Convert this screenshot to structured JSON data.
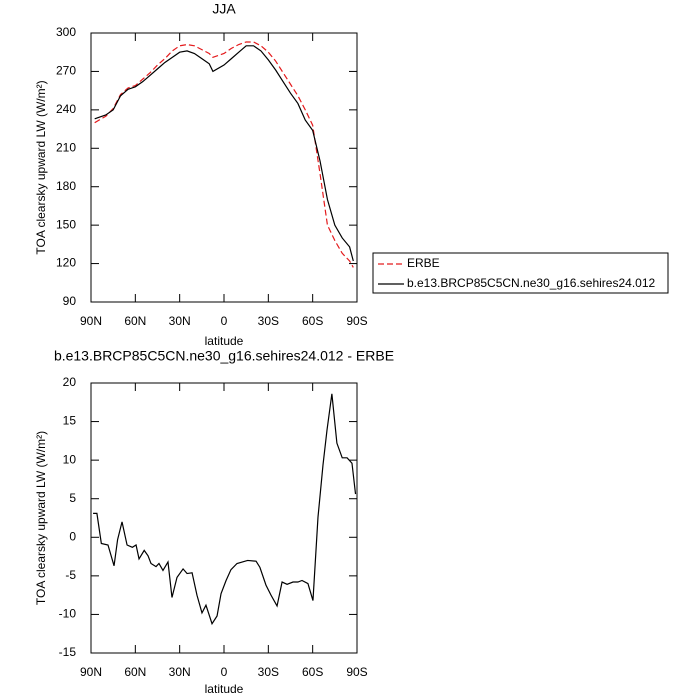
{
  "chart_data": [
    {
      "type": "line",
      "title": "JJA",
      "xlabel": "latitude",
      "ylabel": "TOA clearsky upward LW (W/m²)",
      "xlim": [
        90,
        -90
      ],
      "ylim": [
        90,
        300
      ],
      "xticks": [
        {
          "value": 90,
          "label": "90N"
        },
        {
          "value": 60,
          "label": "60N"
        },
        {
          "value": 30,
          "label": "30N"
        },
        0,
        {
          "value": -30,
          "label": "30S"
        },
        {
          "value": -60,
          "label": "60S"
        },
        {
          "value": -90,
          "label": "90S"
        }
      ],
      "yticks": [
        90,
        120,
        150,
        180,
        210,
        240,
        270,
        300
      ],
      "legend": "outside right",
      "x": [
        87.5,
        80,
        75,
        70,
        65,
        60,
        55,
        50,
        45,
        40,
        35,
        30,
        25,
        20,
        15,
        10,
        7.5,
        0,
        -5,
        -10,
        -15,
        -20,
        -25,
        -30,
        -35,
        -40,
        -45,
        -50,
        -55,
        -60,
        -65,
        -70,
        -75,
        -80,
        -85,
        -87.5
      ],
      "series": [
        {
          "name": "ERBE",
          "color": "#e41a1c",
          "linestyle": "dashed",
          "values": [
            230,
            235,
            241,
            252,
            257,
            259,
            264,
            269,
            275,
            280,
            286,
            290,
            291,
            290,
            287,
            284,
            281,
            284,
            288,
            291,
            293,
            293,
            290,
            285,
            278,
            269,
            260,
            251,
            240,
            228,
            190,
            150,
            138,
            128,
            122,
            117
          ]
        },
        {
          "name": "b.e13.BRCP85C5CN.ne30_g16.sehires24.012",
          "color": "#000000",
          "linestyle": "solid",
          "values": [
            233,
            236,
            240,
            251,
            256,
            258,
            262,
            267,
            272,
            277,
            281,
            285,
            286,
            284,
            280,
            276,
            270,
            275,
            280,
            285,
            290,
            290,
            286,
            279,
            271,
            262,
            253,
            245,
            232,
            224,
            200,
            170,
            150,
            140,
            133,
            122
          ]
        }
      ]
    },
    {
      "type": "line",
      "title": "b.e13.BRCP85C5CN.ne30_g16.sehires24.012 - ERBE",
      "xlabel": "latitude",
      "ylabel": "TOA clearsky upward LW (W/m²)",
      "xlim": [
        90,
        -90
      ],
      "ylim": [
        -15,
        20
      ],
      "xticks": [
        {
          "value": 90,
          "label": "90N"
        },
        {
          "value": 60,
          "label": "60N"
        },
        {
          "value": 30,
          "label": "30N"
        },
        0,
        {
          "value": -30,
          "label": "30S"
        },
        {
          "value": -60,
          "label": "60S"
        },
        {
          "value": -90,
          "label": "90S"
        }
      ],
      "yticks": [
        -15,
        -10,
        -5,
        0,
        5,
        10,
        15,
        20
      ],
      "x": [
        88.6,
        86,
        83,
        78.5,
        74.4,
        72,
        69,
        65.6,
        62,
        59.5,
        57.5,
        54,
        51.4,
        49.4,
        46,
        44,
        41.3,
        37.9,
        35.2,
        31.8,
        27.7,
        25,
        21.6,
        18.3,
        14.9,
        12.2,
        8.1,
        4.7,
        2,
        -1.4,
        -4.7,
        -8.8,
        -16,
        -21.7,
        -24.3,
        -28.4,
        -31.8,
        -35.9,
        -39.3,
        -42.7,
        -46.7,
        -50,
        -52.8,
        -56.8,
        -60.2,
        -63.6,
        -67,
        -69.7,
        -73,
        -76.4,
        -80,
        -83.3,
        -86.6,
        -89
      ],
      "series": [
        {
          "color": "#000000",
          "linestyle": "solid",
          "values": [
            3.1,
            3.1,
            -0.8,
            -1.0,
            -3.7,
            -0.3,
            2.0,
            -1.0,
            -1.3,
            -1.0,
            -2.8,
            -1.7,
            -2.4,
            -3.4,
            -3.8,
            -3.4,
            -4.3,
            -3.2,
            -7.8,
            -5.2,
            -4.1,
            -4.7,
            -4.6,
            -7.5,
            -9.8,
            -8.8,
            -11.2,
            -10.2,
            -7.3,
            -5.6,
            -4.2,
            -3.4,
            -3.0,
            -3.1,
            -3.9,
            -6.2,
            -7.5,
            -8.9,
            -5.8,
            -6.1,
            -5.8,
            -5.8,
            -5.6,
            -6.0,
            -8.2,
            2.6,
            9.4,
            13.9,
            18.6,
            12.2,
            10.3,
            10.3,
            9.6,
            5.6
          ]
        }
      ]
    }
  ]
}
